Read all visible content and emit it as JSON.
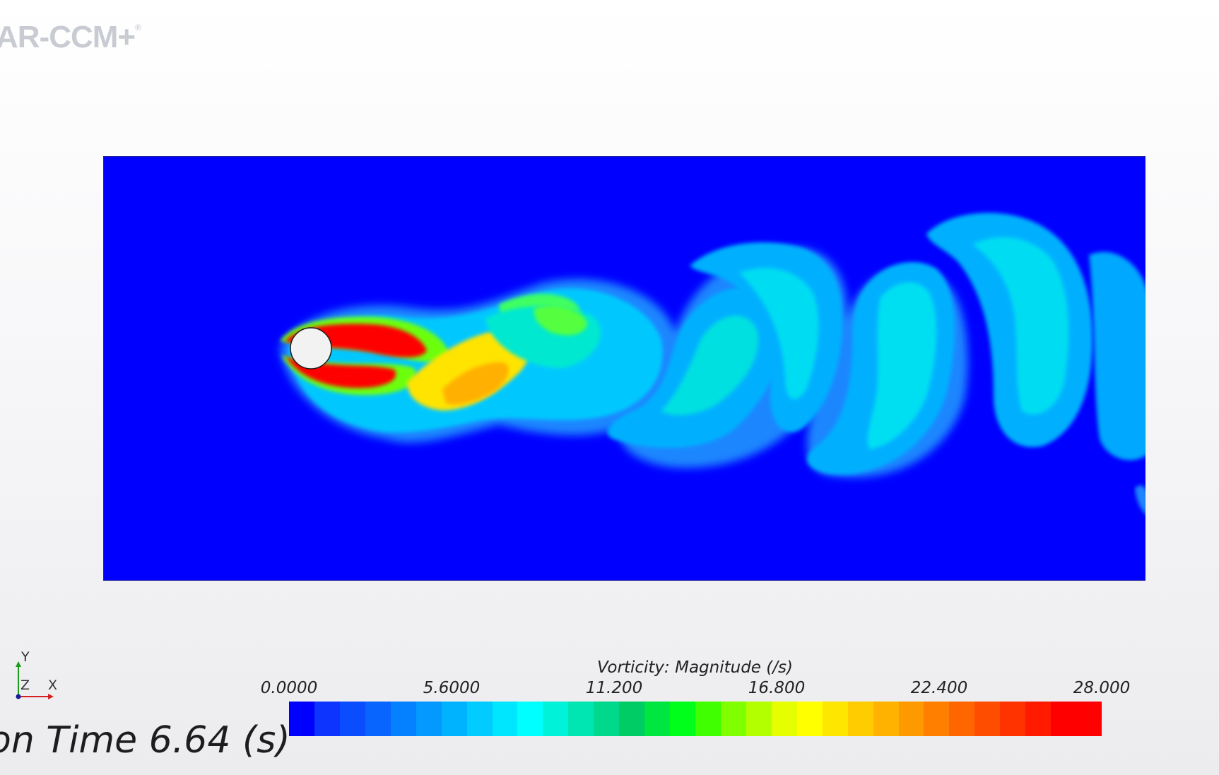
{
  "brand": {
    "text": "AR-CCM+",
    "mark": "®"
  },
  "time_readout": "on Time 6.64 (s)",
  "triad": {
    "y_label": "Y",
    "z_label": "Z",
    "x_label": "X"
  },
  "legend": {
    "title": "Vorticity: Magnitude (/s)",
    "ticks": [
      "0.0000",
      "5.6000",
      "11.200",
      "16.800",
      "22.400",
      "28.000"
    ],
    "colors": [
      "#0000ff",
      "#0d33ff",
      "#0a4dff",
      "#0866ff",
      "#0580ff",
      "#0399ff",
      "#00b3ff",
      "#00ccff",
      "#00e6ff",
      "#00ffff",
      "#00f2d9",
      "#00e6b3",
      "#00d98c",
      "#00cc66",
      "#00e640",
      "#00ff1a",
      "#40ff00",
      "#80ff00",
      "#b3ff00",
      "#e6ff00",
      "#ffff00",
      "#ffe600",
      "#ffcc00",
      "#ffb300",
      "#ff9900",
      "#ff8000",
      "#ff6600",
      "#ff4d00",
      "#ff3300",
      "#ff1a00",
      "#ff0000",
      "#ff0000"
    ]
  },
  "colors": {
    "domain_background": "#0000ff",
    "cylinder": "#f2f2f2",
    "brand_gray": "#c8ccd2"
  }
}
